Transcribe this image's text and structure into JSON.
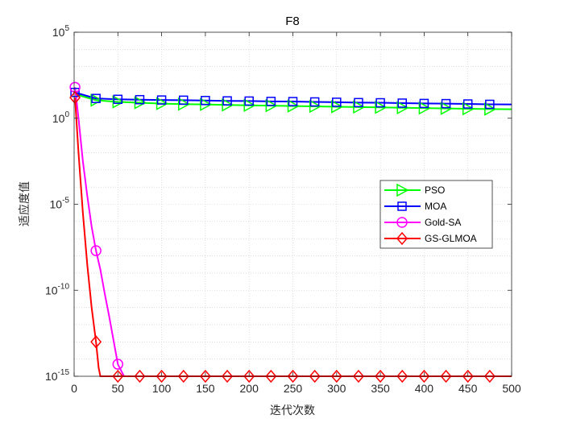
{
  "chart_data": {
    "type": "line",
    "title": "F8",
    "xlabel": "迭代次数",
    "ylabel": "适应度值",
    "xlim": [
      0,
      500
    ],
    "ylim_exp": [
      -15,
      5
    ],
    "yscale": "log",
    "grid": true,
    "x_ticks": [
      "0",
      "50",
      "100",
      "150",
      "200",
      "250",
      "300",
      "350",
      "400",
      "450",
      "500"
    ],
    "x_tick_values": [
      0,
      50,
      100,
      150,
      200,
      250,
      300,
      350,
      400,
      450,
      500
    ],
    "y_ticks": [
      {
        "base": "10",
        "exp": "-15",
        "value_exp": -15
      },
      {
        "base": "10",
        "exp": "-10",
        "value_exp": -10
      },
      {
        "base": "10",
        "exp": "-5",
        "value_exp": -5
      },
      {
        "base": "10",
        "exp": "0",
        "value_exp": 0
      },
      {
        "base": "10",
        "exp": "5",
        "value_exp": 5
      }
    ],
    "legend_position": "center-right",
    "series": [
      {
        "name": "PSO",
        "color": "#00ff00",
        "marker": "triangle-right",
        "x": [
          1,
          25,
          50,
          75,
          100,
          125,
          150,
          175,
          200,
          225,
          250,
          275,
          300,
          325,
          350,
          375,
          400,
          425,
          450,
          475,
          500
        ],
        "y_log10": [
          1.4,
          1.05,
          0.95,
          0.9,
          0.85,
          0.82,
          0.8,
          0.77,
          0.75,
          0.73,
          0.71,
          0.69,
          0.67,
          0.65,
          0.63,
          0.61,
          0.59,
          0.57,
          0.55,
          0.53,
          0.52
        ]
      },
      {
        "name": "MOA",
        "color": "#0000ff",
        "marker": "square",
        "x": [
          1,
          25,
          50,
          75,
          100,
          125,
          150,
          175,
          200,
          225,
          250,
          275,
          300,
          325,
          350,
          375,
          400,
          425,
          450,
          475,
          500
        ],
        "y_log10": [
          1.5,
          1.15,
          1.1,
          1.08,
          1.06,
          1.05,
          1.03,
          1.01,
          1.0,
          0.98,
          0.97,
          0.95,
          0.93,
          0.91,
          0.9,
          0.88,
          0.86,
          0.85,
          0.83,
          0.81,
          0.8
        ]
      },
      {
        "name": "Gold-SA",
        "color": "#ff00ff",
        "marker": "circle",
        "x": [
          1,
          5,
          10,
          15,
          20,
          25,
          30,
          35,
          40,
          45,
          50,
          55,
          57,
          60,
          100,
          150,
          200,
          250,
          300,
          350,
          400,
          450,
          500
        ],
        "y_log10": [
          1.8,
          0.0,
          -2.5,
          -4.5,
          -6.3,
          -7.7,
          -8.8,
          -10.2,
          -11.5,
          -12.9,
          -14.3,
          -14.8,
          -15.0,
          -15.0,
          -15.0,
          -15.0,
          -15.0,
          -15.0,
          -15.0,
          -15.0,
          -15.0,
          -15.0,
          -15.0
        ]
      },
      {
        "name": "GS-GLMOA",
        "color": "#ff0000",
        "marker": "diamond",
        "x": [
          1,
          5,
          10,
          15,
          20,
          25,
          28,
          30,
          50,
          100,
          150,
          200,
          250,
          300,
          350,
          400,
          450,
          500
        ],
        "y_log10": [
          1.2,
          -2.0,
          -5.5,
          -8.5,
          -11.0,
          -13.0,
          -14.5,
          -15.0,
          -15.0,
          -15.0,
          -15.0,
          -15.0,
          -15.0,
          -15.0,
          -15.0,
          -15.0,
          -15.0,
          -15.0
        ]
      }
    ],
    "marker_points": {
      "PSO": [
        [
          25,
          1.05
        ],
        [
          50,
          0.95
        ],
        [
          75,
          0.9
        ],
        [
          100,
          0.85
        ],
        [
          125,
          0.82
        ],
        [
          150,
          0.8
        ],
        [
          175,
          0.77
        ],
        [
          200,
          0.75
        ],
        [
          225,
          0.73
        ],
        [
          250,
          0.71
        ],
        [
          275,
          0.69
        ],
        [
          300,
          0.67
        ],
        [
          325,
          0.65
        ],
        [
          350,
          0.63
        ],
        [
          375,
          0.61
        ],
        [
          400,
          0.59
        ],
        [
          425,
          0.57
        ],
        [
          450,
          0.55
        ],
        [
          475,
          0.53
        ]
      ],
      "MOA": [
        [
          1,
          1.5
        ],
        [
          25,
          1.15
        ],
        [
          50,
          1.1
        ],
        [
          75,
          1.08
        ],
        [
          100,
          1.06
        ],
        [
          125,
          1.05
        ],
        [
          150,
          1.03
        ],
        [
          175,
          1.01
        ],
        [
          200,
          1.0
        ],
        [
          225,
          0.98
        ],
        [
          250,
          0.97
        ],
        [
          275,
          0.95
        ],
        [
          300,
          0.93
        ],
        [
          325,
          0.91
        ],
        [
          350,
          0.9
        ],
        [
          375,
          0.88
        ],
        [
          400,
          0.86
        ],
        [
          425,
          0.85
        ],
        [
          450,
          0.83
        ],
        [
          475,
          0.81
        ]
      ],
      "Gold-SA": [
        [
          1,
          1.8
        ],
        [
          25,
          -7.7
        ],
        [
          50,
          -14.3
        ]
      ],
      "GS-GLMOA": [
        [
          1,
          1.2
        ],
        [
          25,
          -13.0
        ],
        [
          50,
          -15.0
        ],
        [
          75,
          -15.0
        ],
        [
          100,
          -15.0
        ],
        [
          125,
          -15.0
        ],
        [
          150,
          -15.0
        ],
        [
          175,
          -15.0
        ],
        [
          200,
          -15.0
        ],
        [
          225,
          -15.0
        ],
        [
          250,
          -15.0
        ],
        [
          275,
          -15.0
        ],
        [
          300,
          -15.0
        ],
        [
          325,
          -15.0
        ],
        [
          350,
          -15.0
        ],
        [
          375,
          -15.0
        ],
        [
          400,
          -15.0
        ],
        [
          425,
          -15.0
        ],
        [
          450,
          -15.0
        ],
        [
          475,
          -15.0
        ]
      ]
    }
  }
}
